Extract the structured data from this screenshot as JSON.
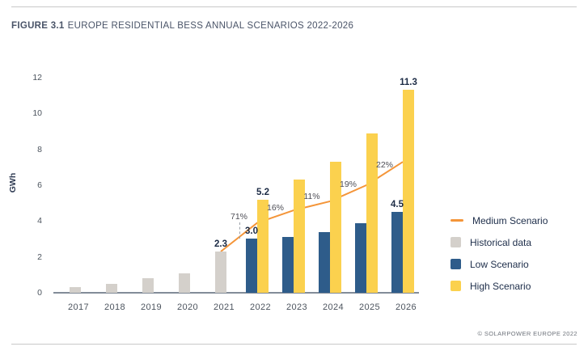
{
  "header": {
    "figure_label": "FIGURE 3.1",
    "title": "EUROPE RESIDENTIAL BESS ANNUAL SCENARIOS 2022-2026"
  },
  "chart_data": {
    "type": "bar",
    "title": "Europe residential BESS annual scenarios 2022-2026",
    "xlabel": "",
    "ylabel": "GWh",
    "ylim": [
      0,
      12
    ],
    "yticks": [
      0,
      2,
      4,
      6,
      8,
      10,
      12
    ],
    "grid": false,
    "legend_position": "right",
    "categories": [
      "2017",
      "2018",
      "2019",
      "2020",
      "2021",
      "2022",
      "2023",
      "2024",
      "2025",
      "2026"
    ],
    "series": [
      {
        "name": "Historical data",
        "type": "bar",
        "color": "#d4d0cb",
        "values": [
          0.3,
          0.5,
          0.8,
          1.1,
          2.3,
          null,
          null,
          null,
          null,
          null
        ]
      },
      {
        "name": "Low Scenario",
        "type": "bar",
        "color": "#2e5c8a",
        "values": [
          null,
          null,
          null,
          null,
          null,
          3.0,
          3.1,
          3.4,
          3.9,
          4.5
        ]
      },
      {
        "name": "High Scenario",
        "type": "bar",
        "color": "#fbd14e",
        "values": [
          null,
          null,
          null,
          null,
          null,
          5.2,
          6.3,
          7.3,
          8.9,
          11.3
        ]
      },
      {
        "name": "Medium Scenario",
        "type": "line",
        "color": "#f49539",
        "values": [
          null,
          null,
          null,
          null,
          2.3,
          3.9,
          4.6,
          5.1,
          6.0,
          7.3
        ]
      }
    ],
    "bar_labels": [
      {
        "year": "2021",
        "series": "Historical data",
        "text": "2.3"
      },
      {
        "year": "2022",
        "series": "Low Scenario",
        "text": "3.0"
      },
      {
        "year": "2022",
        "series": "High Scenario",
        "text": "5.2"
      },
      {
        "year": "2026",
        "series": "Low Scenario",
        "text": "4.5"
      },
      {
        "year": "2026",
        "series": "High Scenario",
        "text": "11.3"
      }
    ],
    "growth_labels": [
      {
        "text": "71%",
        "between": [
          "2021",
          "2022"
        ],
        "connector": true
      },
      {
        "text": "16%",
        "between": [
          "2022",
          "2023"
        ],
        "connector": false
      },
      {
        "text": "11%",
        "between": [
          "2023",
          "2024"
        ],
        "connector": false
      },
      {
        "text": "19%",
        "between": [
          "2024",
          "2025"
        ],
        "connector": false
      },
      {
        "text": "22%",
        "between": [
          "2025",
          "2026"
        ],
        "connector": false
      }
    ]
  },
  "legend": {
    "items": [
      {
        "label": "Medium Scenario",
        "swatch": "line",
        "color": "#f49539"
      },
      {
        "label": "Historical data",
        "swatch": "square",
        "color": "#d4d0cb"
      },
      {
        "label": "Low Scenario",
        "swatch": "square",
        "color": "#2e5c8a"
      },
      {
        "label": "High Scenario",
        "swatch": "square",
        "color": "#fbd14e"
      }
    ]
  },
  "footer": {
    "copyright": "© SOLARPOWER EUROPE 2022"
  }
}
